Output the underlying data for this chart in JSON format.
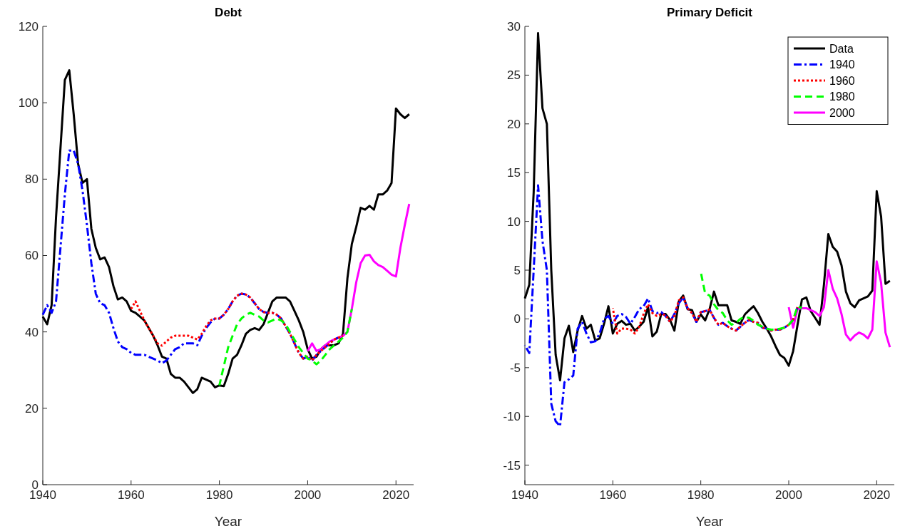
{
  "chart_data": [
    {
      "type": "line",
      "title": "Debt",
      "xlabel": "Year",
      "legend": false,
      "grid": false,
      "x": [
        1940,
        1941,
        1942,
        1943,
        1944,
        1945,
        1946,
        1947,
        1948,
        1949,
        1950,
        1951,
        1952,
        1953,
        1954,
        1955,
        1956,
        1957,
        1958,
        1959,
        1960,
        1961,
        1962,
        1963,
        1964,
        1965,
        1966,
        1967,
        1968,
        1969,
        1970,
        1971,
        1972,
        1973,
        1974,
        1975,
        1976,
        1977,
        1978,
        1979,
        1980,
        1981,
        1982,
        1983,
        1984,
        1985,
        1986,
        1987,
        1988,
        1989,
        1990,
        1991,
        1992,
        1993,
        1994,
        1995,
        1996,
        1997,
        1998,
        1999,
        2000,
        2001,
        2002,
        2003,
        2004,
        2005,
        2006,
        2007,
        2008,
        2009,
        2010,
        2011,
        2012,
        2013,
        2014,
        2015,
        2016,
        2017,
        2018,
        2019,
        2020,
        2021,
        2022,
        2023
      ],
      "xlim": [
        1940,
        2024
      ],
      "xticks": [
        1940,
        1960,
        1980,
        2000,
        2020
      ],
      "ylim": [
        0,
        120
      ],
      "yticks": [
        0,
        20,
        40,
        60,
        80,
        100,
        120
      ],
      "series": [
        {
          "color": "#000000",
          "line_style": "solid",
          "values": [
            44,
            42,
            47,
            70,
            88,
            106,
            108.5,
            97,
            84,
            79,
            80,
            67,
            62,
            59,
            59.5,
            57,
            52,
            48.5,
            49,
            48,
            45.5,
            45,
            44,
            43,
            41,
            39,
            36.5,
            33.5,
            33,
            29,
            28,
            28,
            27,
            25.5,
            24,
            25,
            28,
            27.5,
            27,
            25.5,
            26,
            25.8,
            29,
            33,
            34,
            36.5,
            39.5,
            40.5,
            41,
            40.5,
            42,
            45,
            48,
            49,
            49,
            49,
            48,
            45.5,
            43,
            40,
            35.5,
            33,
            33.5,
            35.5,
            36.5,
            36.5,
            36.5,
            37,
            39.5,
            54,
            63,
            67.5,
            72.5,
            72,
            73,
            72,
            76,
            76,
            77,
            79,
            98.5,
            97,
            96,
            97
          ]
        },
        {
          "color": "#0000ff",
          "line_style": "dashdot",
          "values": [
            44.5,
            47,
            45,
            48,
            62,
            76,
            87.5,
            87.5,
            84,
            77,
            68,
            58,
            50,
            47.5,
            47,
            45,
            41,
            37.5,
            36,
            35.5,
            34.5,
            34,
            34,
            34,
            33.5,
            33,
            32.5,
            31.8,
            32.5,
            34,
            35.5,
            36,
            37,
            37,
            37,
            36.5,
            39,
            41,
            42.5,
            43.5,
            43.5,
            44.5,
            46,
            48,
            49.5,
            50,
            49.8,
            49,
            47.5,
            46,
            45.2,
            45,
            45,
            44.5,
            43.5,
            41.5,
            39.5,
            37,
            34.5,
            33,
            33.5,
            32.5,
            34,
            35,
            36,
            37,
            38,
            38.5,
            null,
            null,
            null,
            null,
            null,
            null,
            null,
            null,
            null,
            null,
            null,
            null,
            null,
            null,
            null,
            null
          ]
        },
        {
          "color": "#ff0000",
          "line_style": "dotted",
          "values": [
            null,
            null,
            null,
            null,
            null,
            null,
            null,
            null,
            null,
            null,
            null,
            null,
            null,
            null,
            null,
            null,
            null,
            null,
            null,
            null,
            46,
            48,
            45.5,
            43,
            41,
            39,
            37,
            36.4,
            37.5,
            38.5,
            39,
            39,
            39,
            39,
            38.5,
            38,
            39.5,
            41.5,
            43,
            43.5,
            43.5,
            44.5,
            46,
            48,
            49.5,
            50,
            49.8,
            49,
            47.5,
            46,
            45.2,
            45,
            45,
            44.5,
            43.5,
            41.5,
            39.5,
            37,
            34.5,
            33,
            33.5,
            32.5,
            34,
            35,
            36,
            37,
            38,
            38.5,
            39,
            null,
            null,
            null,
            null,
            null,
            null,
            null,
            null,
            null,
            null,
            null,
            null,
            null,
            null,
            null
          ]
        },
        {
          "color": "#00ff00",
          "line_style": "dashed",
          "values": [
            null,
            null,
            null,
            null,
            null,
            null,
            null,
            null,
            null,
            null,
            null,
            null,
            null,
            null,
            null,
            null,
            null,
            null,
            null,
            null,
            null,
            null,
            null,
            null,
            null,
            null,
            null,
            null,
            null,
            null,
            null,
            null,
            null,
            null,
            null,
            null,
            null,
            null,
            null,
            null,
            26,
            31,
            36,
            39,
            42,
            43.5,
            44.5,
            45,
            44.5,
            44,
            43,
            42.5,
            43,
            43.5,
            43,
            42,
            40,
            38,
            36,
            34.5,
            33,
            32.5,
            31.5,
            32.5,
            34,
            35.5,
            36.5,
            37.5,
            38.5,
            40,
            46,
            null,
            null,
            null,
            null,
            null,
            null,
            null,
            null,
            null,
            null,
            null,
            null,
            null
          ]
        },
        {
          "color": "#ff00ff",
          "line_style": "solid",
          "values": [
            null,
            null,
            null,
            null,
            null,
            null,
            null,
            null,
            null,
            null,
            null,
            null,
            null,
            null,
            null,
            null,
            null,
            null,
            null,
            null,
            null,
            null,
            null,
            null,
            null,
            null,
            null,
            null,
            null,
            null,
            null,
            null,
            null,
            null,
            null,
            null,
            null,
            null,
            null,
            null,
            null,
            null,
            null,
            null,
            null,
            null,
            null,
            null,
            null,
            null,
            null,
            null,
            null,
            null,
            null,
            null,
            null,
            null,
            null,
            null,
            35,
            37,
            35,
            35.5,
            36.5,
            37.5,
            38,
            38.5,
            39,
            40,
            46,
            53,
            58,
            60,
            60.2,
            58.5,
            57.5,
            57,
            56,
            55,
            54.5,
            62,
            68,
            73.5
          ]
        }
      ]
    },
    {
      "type": "line",
      "title": "Primary Deficit",
      "xlabel": "Year",
      "legend": "top right",
      "grid": false,
      "x": [
        1940,
        1941,
        1942,
        1943,
        1944,
        1945,
        1946,
        1947,
        1948,
        1949,
        1950,
        1951,
        1952,
        1953,
        1954,
        1955,
        1956,
        1957,
        1958,
        1959,
        1960,
        1961,
        1962,
        1963,
        1964,
        1965,
        1966,
        1967,
        1968,
        1969,
        1970,
        1971,
        1972,
        1973,
        1974,
        1975,
        1976,
        1977,
        1978,
        1979,
        1980,
        1981,
        1982,
        1983,
        1984,
        1985,
        1986,
        1987,
        1988,
        1989,
        1990,
        1991,
        1992,
        1993,
        1994,
        1995,
        1996,
        1997,
        1998,
        1999,
        2000,
        2001,
        2002,
        2003,
        2004,
        2005,
        2006,
        2007,
        2008,
        2009,
        2010,
        2011,
        2012,
        2013,
        2014,
        2015,
        2016,
        2017,
        2018,
        2019,
        2020,
        2021,
        2022,
        2023
      ],
      "xlim": [
        1940,
        2024
      ],
      "xticks": [
        1940,
        1960,
        1980,
        2000,
        2020
      ],
      "ylim": [
        -17,
        30
      ],
      "yticks": [
        -15,
        -10,
        -5,
        0,
        5,
        10,
        15,
        20,
        25,
        30
      ],
      "series": [
        {
          "name": "Data",
          "color": "#000000",
          "line_style": "solid",
          "values": [
            2.1,
            3.5,
            13,
            29.3,
            21.6,
            20,
            5,
            -3.7,
            -6.3,
            -2,
            -0.7,
            -3.4,
            -1.2,
            0.3,
            -1.0,
            -0.6,
            -2.2,
            -2.0,
            -0.5,
            1.3,
            -1.5,
            -0.5,
            -0.2,
            -0.6,
            -0.5,
            -1.2,
            -0.8,
            -0.3,
            1.2,
            -1.8,
            -1.3,
            0.5,
            0.5,
            -0.1,
            -1.2,
            1.8,
            2.4,
            1.0,
            0.9,
            -0.3,
            0.45,
            -0.15,
            1.0,
            2.8,
            1.4,
            1.4,
            1.4,
            -0.15,
            -0.3,
            -0.5,
            0.45,
            0.9,
            1.3,
            0.6,
            -0.3,
            -1.0,
            -1.8,
            -2.8,
            -3.7,
            -4.0,
            -4.8,
            -3.3,
            -0.6,
            2.0,
            2.2,
            0.8,
            0.1,
            -0.6,
            3.5,
            8.7,
            7.4,
            6.9,
            5.5,
            2.8,
            1.6,
            1.2,
            1.9,
            2.1,
            2.3,
            2.9,
            13.1,
            10.5,
            3.6,
            3.9
          ]
        },
        {
          "name": "1940",
          "color": "#0000ff",
          "line_style": "dashdot",
          "values": [
            -2.7,
            -3.5,
            5,
            13.7,
            8,
            5,
            -8.7,
            -10.5,
            -11,
            -6.5,
            -6.2,
            -5.8,
            -1,
            -0.3,
            -1.5,
            -2.4,
            -2.3,
            -1.5,
            0,
            0.3,
            -0.5,
            0.3,
            0.5,
            0.2,
            -0.5,
            0.2,
            1.0,
            1.3,
            2.1,
            0.8,
            0.6,
            0.7,
            0.3,
            -0.3,
            0.5,
            1.6,
            2.2,
            1.1,
            0.6,
            -0.3,
            0.7,
            0.8,
            0.95,
            0.1,
            -0.6,
            -0.4,
            -0.75,
            -1.0,
            -1.2,
            -0.8,
            -0.4,
            -0.1,
            -0.3,
            -0.4,
            -0.9,
            -1.0,
            -1.2,
            -1.1,
            -1.1,
            -0.9,
            -0.6,
            -0.1,
            1.2,
            null,
            null,
            null,
            null,
            null,
            null,
            null,
            null,
            null,
            null,
            null,
            null,
            null,
            null,
            null,
            null,
            null,
            null,
            null,
            null,
            null
          ]
        },
        {
          "name": "1960",
          "color": "#ff0000",
          "line_style": "dotted",
          "values": [
            null,
            null,
            null,
            null,
            null,
            null,
            null,
            null,
            null,
            null,
            null,
            null,
            null,
            null,
            null,
            null,
            null,
            null,
            null,
            null,
            1.1,
            -1.5,
            -1.0,
            -1.0,
            -1.1,
            -1.5,
            -0.8,
            0.5,
            1.5,
            0.6,
            0.3,
            0.5,
            0.4,
            -0.3,
            0.3,
            1.9,
            2.2,
            1.1,
            0.6,
            -0.3,
            0.7,
            0.8,
            0.95,
            0.1,
            -0.6,
            -0.4,
            -0.75,
            -1.0,
            -1.2,
            -0.8,
            -0.4,
            -0.1,
            -0.3,
            -0.4,
            -0.9,
            -1.0,
            -1.2,
            -1.1,
            -1.1,
            -0.9,
            -0.6,
            -0.1,
            1.2,
            null,
            null,
            null,
            null,
            null,
            null,
            null,
            null,
            null,
            null,
            null,
            null,
            null,
            null,
            null,
            null,
            null,
            null,
            null,
            null,
            null
          ]
        },
        {
          "name": "1980",
          "color": "#00ff00",
          "line_style": "dashed",
          "values": [
            null,
            null,
            null,
            null,
            null,
            null,
            null,
            null,
            null,
            null,
            null,
            null,
            null,
            null,
            null,
            null,
            null,
            null,
            null,
            null,
            null,
            null,
            null,
            null,
            null,
            null,
            null,
            null,
            null,
            null,
            null,
            null,
            null,
            null,
            null,
            null,
            null,
            null,
            null,
            null,
            4.8,
            2.6,
            2.4,
            1.5,
            0.9,
            0.6,
            -0.15,
            -0.6,
            -0.4,
            0.0,
            0.2,
            0.1,
            -0.2,
            -0.6,
            -0.8,
            -1.0,
            -1.1,
            -1.1,
            -1.0,
            -0.9,
            -0.6,
            -0.1,
            1.3,
            1.1,
            null,
            null,
            null,
            null,
            null,
            null,
            null,
            null,
            null,
            null,
            null,
            null,
            null,
            null,
            null,
            null,
            null,
            null,
            null,
            null
          ]
        },
        {
          "name": "2000",
          "color": "#ff00ff",
          "line_style": "solid",
          "values": [
            null,
            null,
            null,
            null,
            null,
            null,
            null,
            null,
            null,
            null,
            null,
            null,
            null,
            null,
            null,
            null,
            null,
            null,
            null,
            null,
            null,
            null,
            null,
            null,
            null,
            null,
            null,
            null,
            null,
            null,
            null,
            null,
            null,
            null,
            null,
            null,
            null,
            null,
            null,
            null,
            null,
            null,
            null,
            null,
            null,
            null,
            null,
            null,
            null,
            null,
            null,
            null,
            null,
            null,
            null,
            null,
            null,
            null,
            null,
            null,
            1.2,
            -0.9,
            1.0,
            1.1,
            1.1,
            0.9,
            0.7,
            0.3,
            1.2,
            5.0,
            3.1,
            2.1,
            0.5,
            -1.6,
            -2.2,
            -1.7,
            -1.4,
            -1.6,
            -2.0,
            -1.1,
            5.9,
            3.7,
            -1.4,
            -2.9
          ]
        }
      ]
    }
  ]
}
